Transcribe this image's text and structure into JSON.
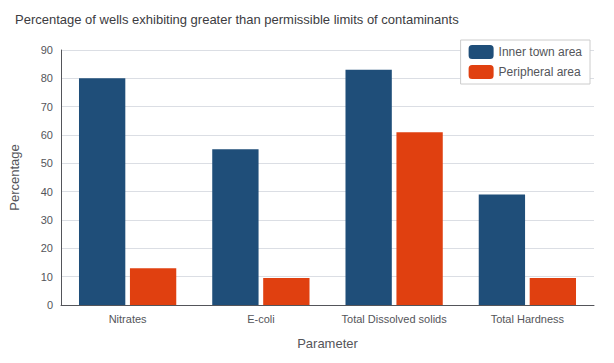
{
  "chart_data": {
    "type": "bar",
    "title": "Percentage of wells exhibiting greater than permissible limits of contaminants",
    "categories": [
      "Nitrates",
      "E-coli",
      "Total Dissolved solids",
      "Total Hardness"
    ],
    "series": [
      {
        "name": "Inner town area",
        "color": "#1F4E79",
        "values": [
          80,
          55,
          83,
          39
        ]
      },
      {
        "name": "Peripheral area",
        "color": "#E04010",
        "values": [
          13,
          9.5,
          61,
          9.5
        ]
      }
    ],
    "xlabel": "Parameter",
    "ylabel": "Percentage",
    "ylim": [
      0,
      90
    ],
    "yticks": [
      0,
      10,
      20,
      30,
      40,
      50,
      60,
      70,
      80,
      90
    ],
    "grid": true,
    "legend": "upper right"
  }
}
